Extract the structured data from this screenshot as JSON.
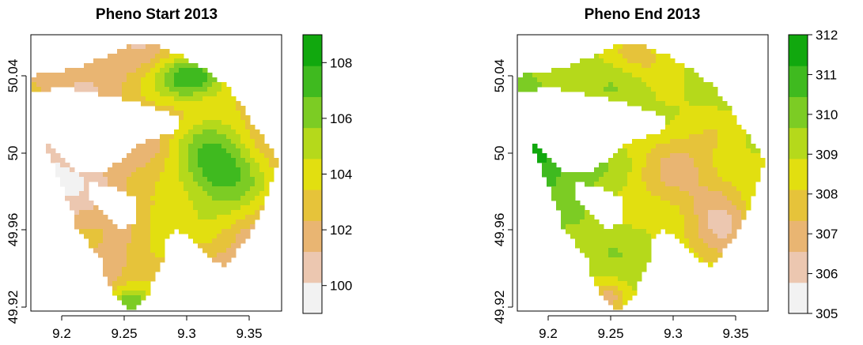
{
  "maps": [
    {
      "title": "Pheno Start 2013",
      "x_ticks": [
        "9.2",
        "9.25",
        "9.3",
        "9.35"
      ],
      "y_ticks": [
        "49.92",
        "49.96",
        "50",
        "50.04"
      ],
      "legend_ticks": [
        "100",
        "102",
        "104",
        "106",
        "108"
      ],
      "legend_range": [
        99,
        109
      ],
      "legend_colors": [
        "#f2f2f2",
        "#ecc7b0",
        "#e9b572",
        "#e6c33a",
        "#e2df10",
        "#b5d91b",
        "#7ccc24",
        "#3fba1f",
        "#11a80e"
      ],
      "pattern": "start"
    },
    {
      "title": "Pheno End 2013",
      "x_ticks": [
        "9.2",
        "9.25",
        "9.3",
        "9.35"
      ],
      "y_ticks": [
        "49.92",
        "49.96",
        "50",
        "50.04"
      ],
      "legend_ticks": [
        "305",
        "306",
        "307",
        "308",
        "309",
        "310",
        "311",
        "312"
      ],
      "legend_range": [
        305,
        312
      ],
      "legend_colors": [
        "#f2f2f2",
        "#ecc7b0",
        "#e9b572",
        "#e6c33a",
        "#e2df10",
        "#b5d91b",
        "#7ccc24",
        "#3fba1f",
        "#11a80e"
      ],
      "pattern": "end"
    }
  ],
  "x_range": [
    9.18,
    9.38
  ],
  "y_range": [
    49.915,
    50.055
  ]
}
